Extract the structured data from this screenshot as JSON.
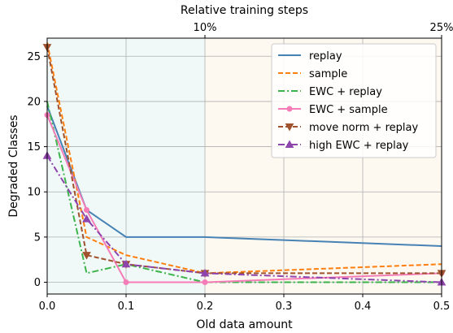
{
  "chart_data": {
    "type": "line",
    "xlabel": "Old data amount",
    "ylabel": "Degraded Classes",
    "top_axis_label": "Relative training steps",
    "top_ticks": [
      {
        "x": 0.2,
        "label": "10%"
      },
      {
        "x": 0.5,
        "label": "25%"
      }
    ],
    "xlim": [
      0.0,
      0.5
    ],
    "ylim": [
      -1.3,
      27.0
    ],
    "x_ticks": [
      0.0,
      0.1,
      0.2,
      0.3,
      0.4,
      0.5
    ],
    "x_tick_labels": [
      "0.0",
      "0.1",
      "0.2",
      "0.3",
      "0.4",
      "0.5"
    ],
    "y_ticks": [
      0,
      5,
      10,
      15,
      20,
      25
    ],
    "y_tick_labels": [
      "0",
      "5",
      "10",
      "15",
      "20",
      "25"
    ],
    "grid": true,
    "legend_position": "top-right",
    "shaded_regions": [
      {
        "x_from": 0.0,
        "x_to": 0.2,
        "color": "#f1f9f8"
      },
      {
        "x_from": 0.2,
        "x_to": 0.5,
        "color": "#fdf8f0"
      }
    ],
    "x": [
      0.0,
      0.05,
      0.1,
      0.2,
      0.5
    ],
    "series": [
      {
        "name": "replay",
        "values": [
          19.5,
          8.0,
          5.0,
          5.0,
          4.0
        ],
        "color": "#4682b4",
        "dash": "solid",
        "marker": "none"
      },
      {
        "name": "sample",
        "values": [
          26.5,
          5.0,
          3.0,
          1.0,
          2.0
        ],
        "color": "#ff7f0e",
        "dash": "dashed",
        "marker": "none"
      },
      {
        "name": "EWC + replay",
        "values": [
          20.0,
          1.0,
          2.0,
          0.0,
          0.0
        ],
        "color": "#3cb44b",
        "dash": "dashdot",
        "marker": "none"
      },
      {
        "name": "EWC + sample",
        "values": [
          18.5,
          8.0,
          0.0,
          0.0,
          1.0
        ],
        "color": "#f47cb7",
        "dash": "solid",
        "marker": "circle"
      },
      {
        "name": "move norm + replay",
        "values": [
          26.0,
          3.0,
          2.0,
          1.0,
          1.0
        ],
        "color": "#a0522d",
        "dash": "dashed",
        "marker": "triangle-down"
      },
      {
        "name": "high EWC + replay",
        "values": [
          14.0,
          7.0,
          2.0,
          1.0,
          0.0
        ],
        "color": "#8e44ad",
        "dash": "dashdot",
        "marker": "triangle-up"
      }
    ]
  }
}
